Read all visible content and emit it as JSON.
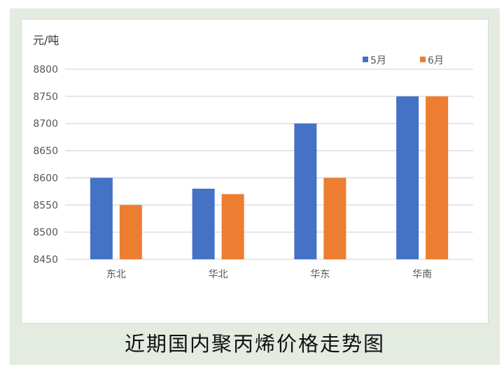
{
  "caption": "近期国内聚丙烯价格走势图",
  "chart_data": {
    "type": "bar",
    "title": "",
    "unit_label": "元/吨",
    "xlabel": "",
    "ylabel": "",
    "categories": [
      "东北",
      "华北",
      "华东",
      "华南"
    ],
    "series": [
      {
        "name": "5月",
        "values": [
          8600,
          8580,
          8700,
          8750
        ],
        "color": "#4472c4"
      },
      {
        "name": "6月",
        "values": [
          8550,
          8570,
          8600,
          8750
        ],
        "color": "#ed7d31"
      }
    ],
    "ylim": [
      8450,
      8800
    ],
    "yticks": [
      8450,
      8500,
      8550,
      8600,
      8650,
      8700,
      8750,
      8800
    ],
    "grid": true,
    "gridline_color": "#d9d9d9",
    "legend_position": "top-right"
  }
}
